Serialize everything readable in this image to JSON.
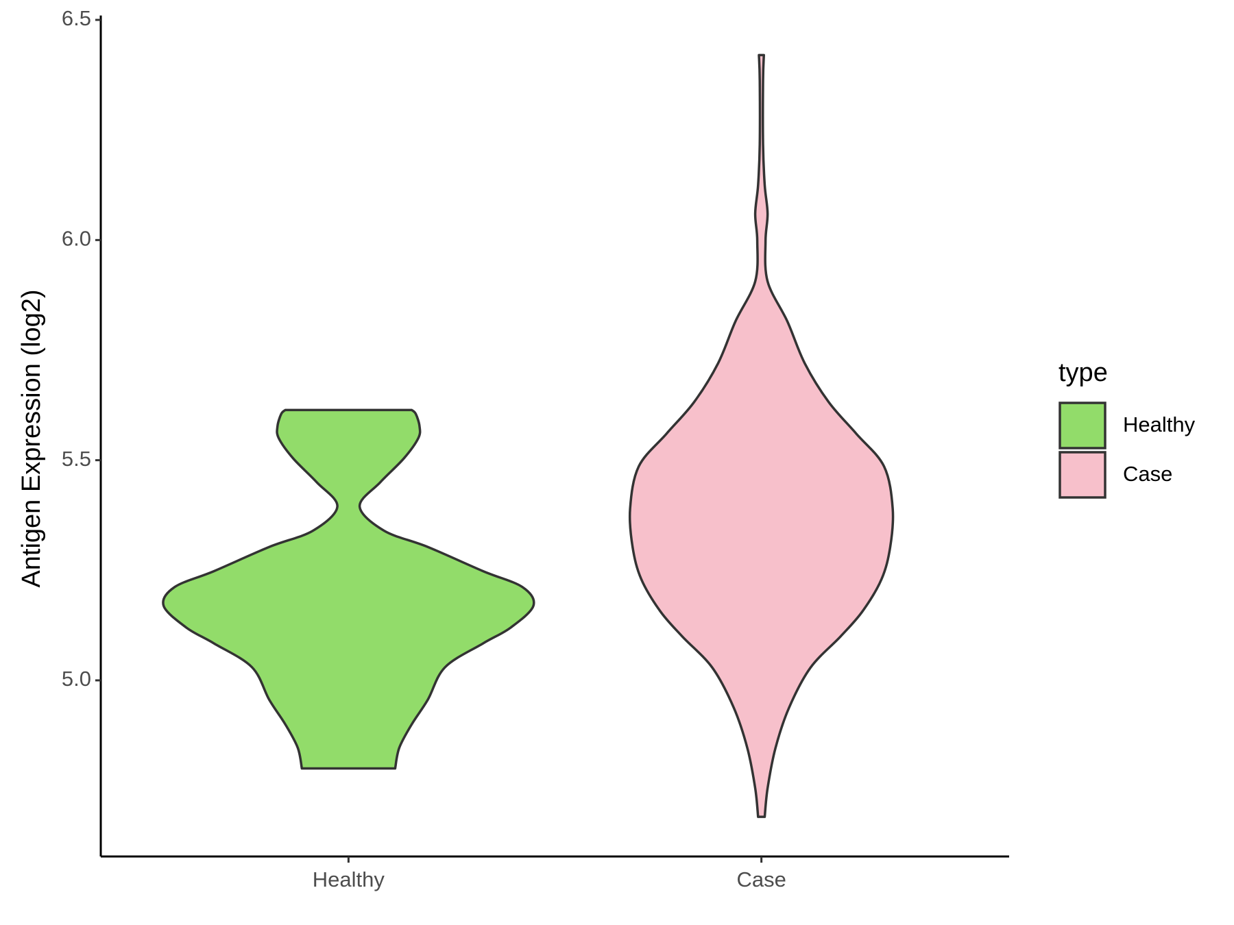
{
  "chart_data": {
    "type": "violin",
    "y_label": "Antigen Expression (log2)",
    "legend_title": "type",
    "categories": [
      "Healthy",
      "Case"
    ],
    "series": [
      {
        "name": "Healthy",
        "color": "#92dc6a",
        "y": [
          4.8,
          4.847,
          4.9,
          4.956,
          5.03,
          5.084,
          5.12,
          5.17,
          5.212,
          5.248,
          5.303,
          5.34,
          5.395,
          5.45,
          5.504,
          5.55,
          5.577,
          5.605,
          5.614
        ],
        "density": [
          0.113,
          0.123,
          0.153,
          0.192,
          0.234,
          0.326,
          0.393,
          0.448,
          0.421,
          0.326,
          0.192,
          0.086,
          0.027,
          0.077,
          0.134,
          0.169,
          0.172,
          0.163,
          0.153
        ]
      },
      {
        "name": "Case",
        "color": "#f7c0cb",
        "y": [
          4.69,
          4.755,
          4.846,
          4.938,
          5.029,
          5.1,
          5.157,
          5.23,
          5.303,
          5.39,
          5.486,
          5.56,
          5.632,
          5.72,
          5.815,
          5.906,
          5.998,
          6.06,
          6.125,
          6.217,
          6.363,
          6.42
        ],
        "density": [
          0.008,
          0.015,
          0.034,
          0.067,
          0.119,
          0.192,
          0.245,
          0.291,
          0.312,
          0.318,
          0.297,
          0.23,
          0.163,
          0.105,
          0.063,
          0.015,
          0.01,
          0.015,
          0.008,
          0.004,
          0.004,
          0.006
        ]
      }
    ],
    "ylim": [
      4.6,
      6.51
    ],
    "yticks": [
      {
        "value": 5.0,
        "label": "5.0"
      },
      5.5,
      {
        "value": 6.0,
        "label": "6.0"
      },
      6.5
    ]
  }
}
